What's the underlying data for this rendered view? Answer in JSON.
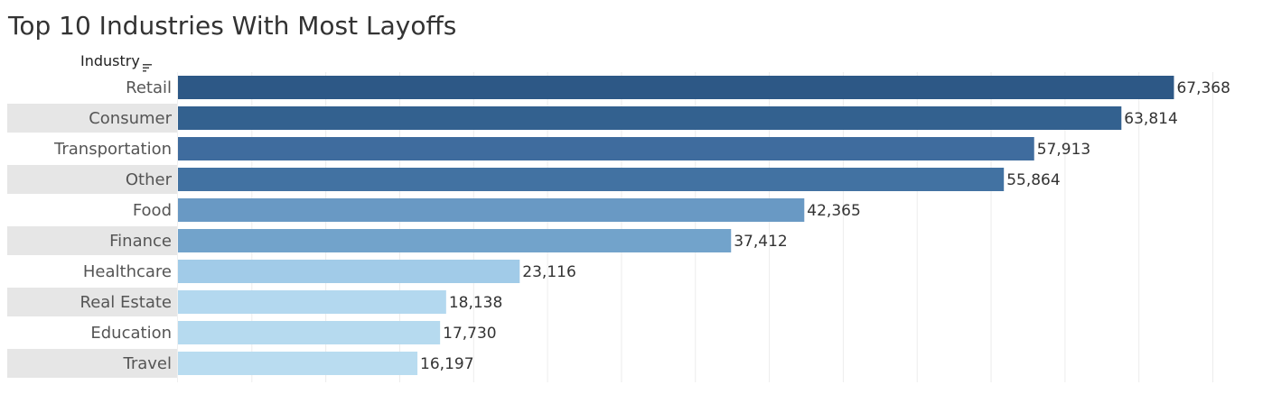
{
  "header": {
    "title": "Top 10 Industries With Most Layoffs"
  },
  "field_header": {
    "label": "Industry",
    "sort_icon": "sort-descending-icon"
  },
  "colors": {
    "band": "#e6e6e6",
    "grid": "#ececec",
    "bar_dark": "#2d5886",
    "bar_light": "#b9dcf0"
  },
  "chart_data": {
    "type": "bar",
    "orientation": "horizontal",
    "title": "Top 10 Industries With Most Layoffs",
    "row_header": "Industry",
    "categories": [
      "Retail",
      "Consumer",
      "Transportation",
      "Other",
      "Food",
      "Finance",
      "Healthcare",
      "Real Estate",
      "Education",
      "Travel"
    ],
    "values": [
      67368,
      63814,
      57913,
      55864,
      42365,
      37412,
      23116,
      18138,
      17730,
      16197
    ],
    "value_labels": [
      "67,368",
      "63,814",
      "57,913",
      "55,864",
      "42,365",
      "37,412",
      "23,116",
      "18,138",
      "17,730",
      "16,197"
    ],
    "bar_colors": [
      "#2d5886",
      "#33618f",
      "#3f6c9e",
      "#4272a2",
      "#6999c4",
      "#72a3cb",
      "#a1cbe8",
      "#b3d8ef",
      "#b6daef",
      "#b9dcf0"
    ],
    "xlim": [
      0,
      74000
    ],
    "grid": true,
    "banding": true
  }
}
